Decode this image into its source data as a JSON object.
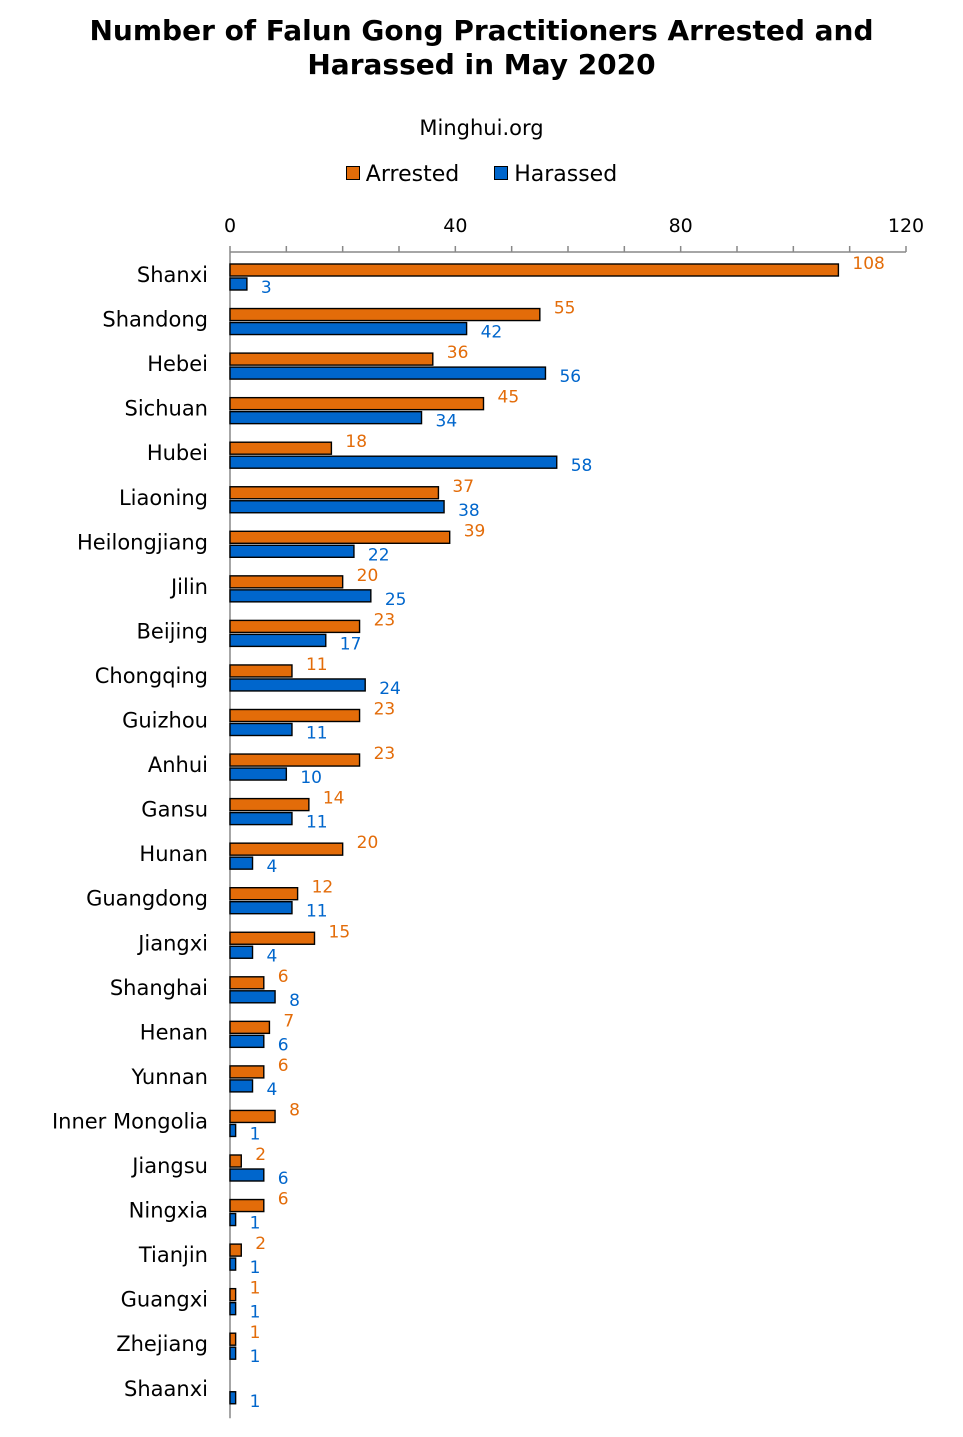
{
  "chart_data": {
    "type": "bar",
    "orientation": "horizontal",
    "title_lines": [
      "Number of Falun Gong Practitioners Arrested and",
      "Harassed in May 2020"
    ],
    "subtitle": "Minghui.org",
    "xlim": [
      0,
      120
    ],
    "x_ticks": [
      0,
      40,
      80,
      120
    ],
    "legend_position": "top",
    "categories": [
      "Shanxi",
      "Shandong",
      "Hebei",
      "Sichuan",
      "Hubei",
      "Liaoning",
      "Heilongjiang",
      "Jilin",
      "Beijing",
      "Chongqing",
      "Guizhou",
      "Anhui",
      "Gansu",
      "Hunan",
      "Guangdong",
      "Jiangxi",
      "Shanghai",
      "Henan",
      "Yunnan",
      "Inner Mongolia",
      "Jiangsu",
      "Ningxia",
      "Tianjin",
      "Guangxi",
      "Zhejiang",
      "Shaanxi"
    ],
    "series": [
      {
        "name": "Arrested",
        "color": "#E36C09",
        "label_color": "#E36C09",
        "values": [
          108,
          55,
          36,
          45,
          18,
          37,
          39,
          20,
          23,
          11,
          23,
          23,
          14,
          20,
          12,
          15,
          6,
          7,
          6,
          8,
          2,
          6,
          2,
          1,
          1,
          null
        ]
      },
      {
        "name": "Harassed",
        "color": "#0066CC",
        "label_color": "#0066CC",
        "values": [
          3,
          42,
          56,
          34,
          58,
          38,
          22,
          25,
          17,
          24,
          11,
          10,
          11,
          4,
          11,
          4,
          8,
          6,
          4,
          1,
          6,
          1,
          1,
          1,
          1,
          1
        ]
      }
    ]
  }
}
